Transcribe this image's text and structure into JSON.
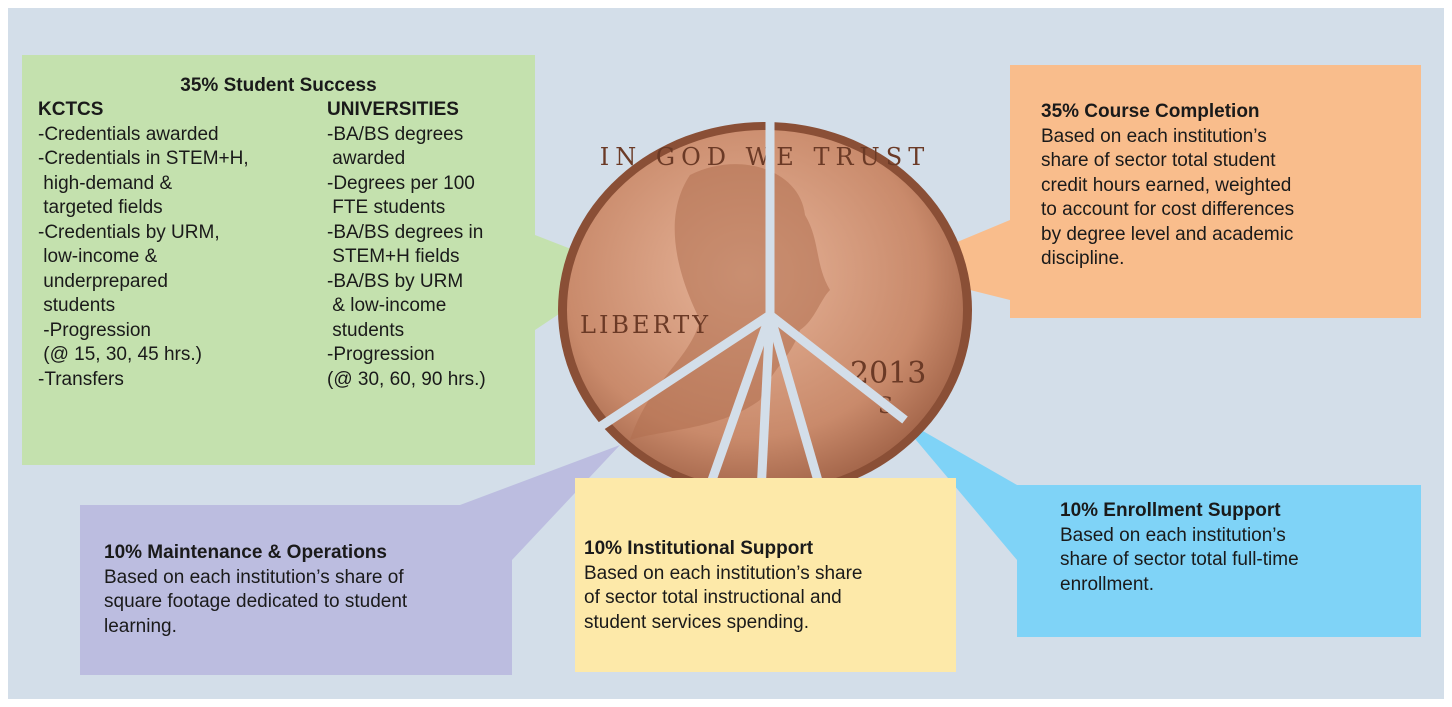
{
  "student_success": {
    "title": "35% Student Success",
    "kctcs": {
      "heading": "KCTCS",
      "lines": [
        "-Credentials awarded",
        "-Credentials in STEM+H,",
        " high-demand &",
        " targeted fields",
        "-Credentials by URM,",
        " low-income &",
        " underprepared",
        " students",
        " -Progression",
        " (@ 15, 30, 45 hrs.)",
        "-Transfers"
      ]
    },
    "universities": {
      "heading": "UNIVERSITIES",
      "lines": [
        "-BA/BS degrees",
        " awarded",
        "-Degrees per 100",
        " FTE students",
        "-BA/BS degrees in",
        " STEM+H fields",
        "-BA/BS by URM",
        " & low-income",
        " students",
        "-Progression",
        "(@ 30, 60, 90 hrs.)"
      ]
    }
  },
  "course_completion": {
    "title": "35% Course Completion",
    "lines": [
      "Based on each institution’s",
      "share of sector total student",
      "credit hours earned, weighted",
      "to account for cost differences",
      "by degree level and academic",
      "discipline."
    ]
  },
  "maintenance_operations": {
    "title": "10% Maintenance & Operations",
    "lines": [
      "Based on each institution’s share of",
      "square footage dedicated to student",
      "learning."
    ]
  },
  "institutional_support": {
    "title": "10% Institutional Support",
    "lines": [
      "Based on each institution’s share",
      "of sector total instructional and",
      "student services spending."
    ]
  },
  "enrollment_support": {
    "title": "10% Enrollment Support",
    "lines": [
      "Based on each institution’s",
      "share of sector total full-time",
      "enrollment."
    ]
  },
  "coin": {
    "motto": "IN GOD WE TRUST",
    "word": "LIBERTY",
    "year": "2013",
    "mint": "S"
  }
}
